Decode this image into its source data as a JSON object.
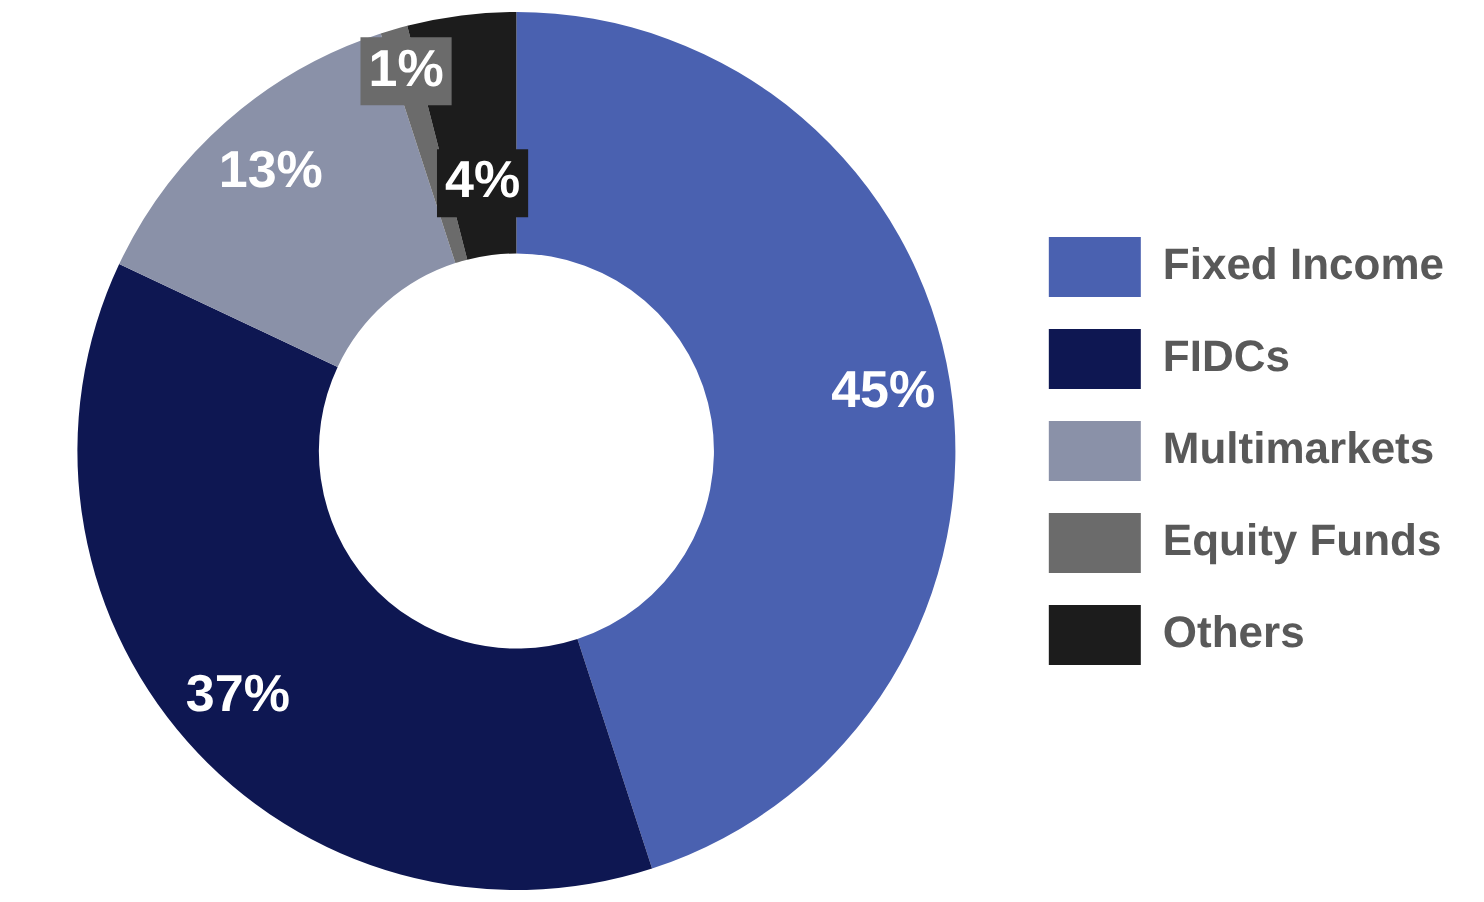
{
  "chart_data": {
    "type": "donut",
    "categories": [
      "Fixed Income",
      "FIDCs",
      "Multimarkets",
      "Equity Funds",
      "Others"
    ],
    "values": [
      45,
      37,
      13,
      1,
      4
    ],
    "colors": [
      "#4a61b0",
      "#0e1752",
      "#8a91a8",
      "#6b6b6b",
      "#1c1c1c"
    ],
    "value_labels": [
      "45%",
      "37%",
      "13%",
      "1%",
      "4%"
    ],
    "legend": "right"
  }
}
